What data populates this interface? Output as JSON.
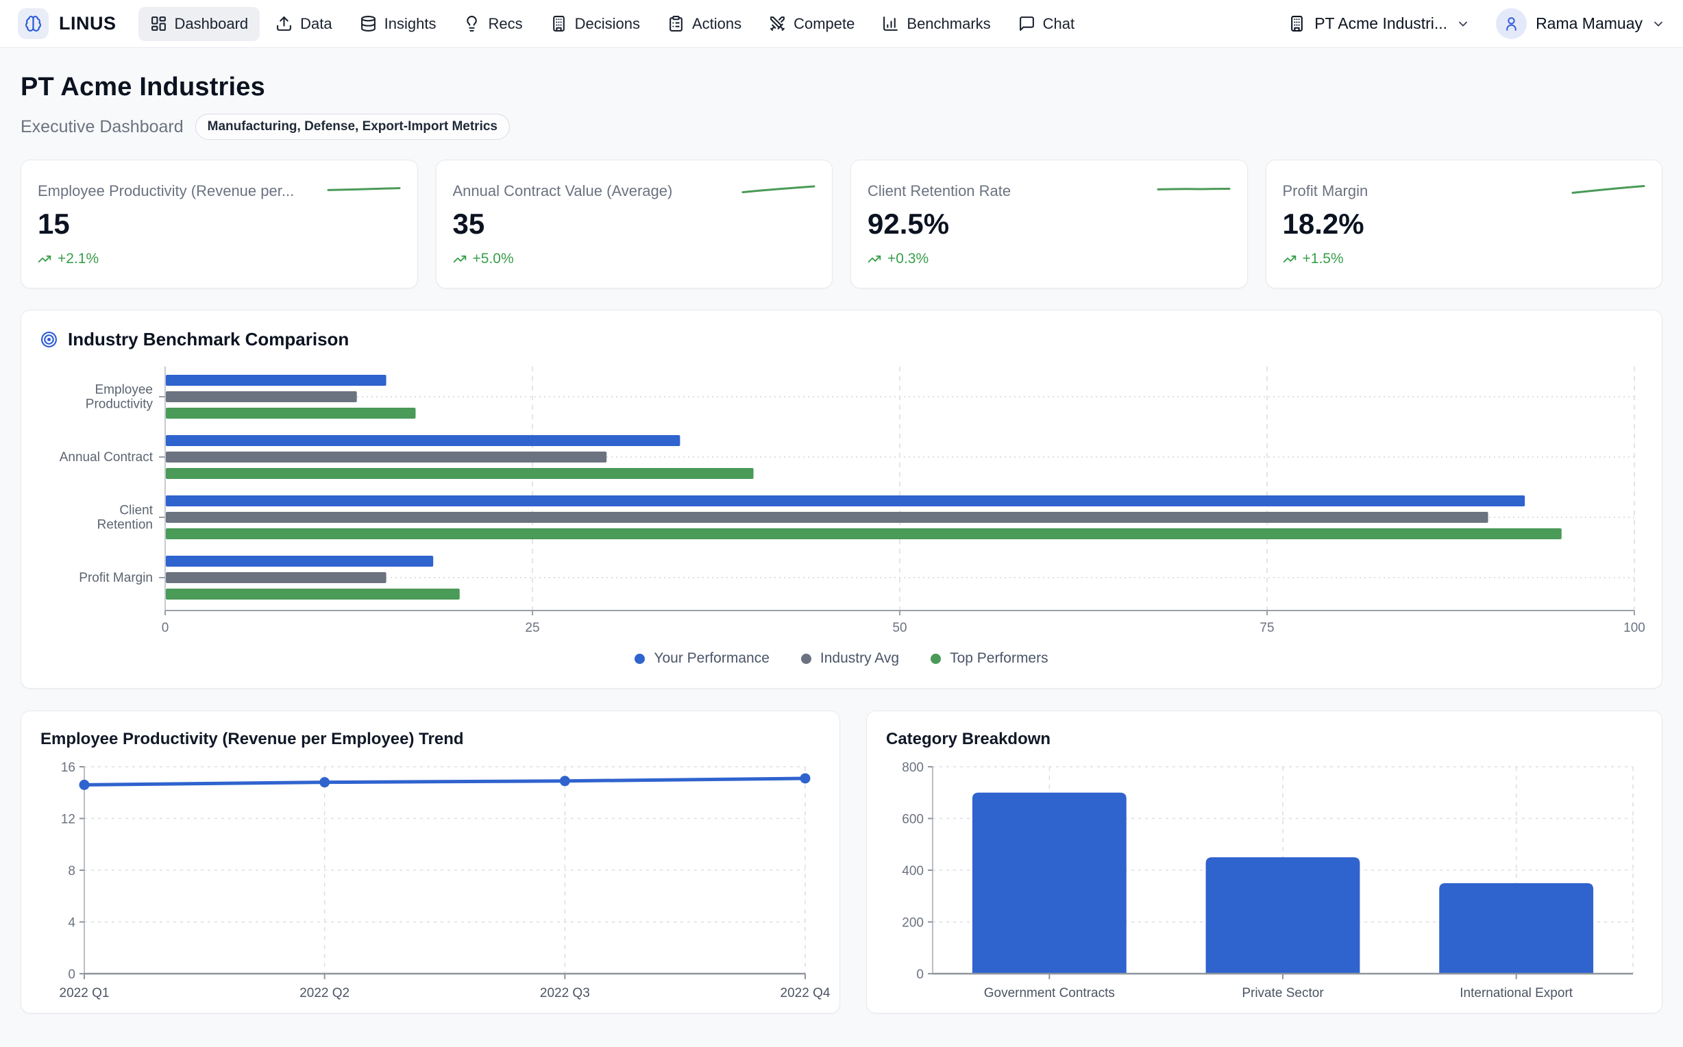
{
  "topbar": {
    "brand": "LINUS",
    "nav_items": [
      {
        "label": "Dashboard",
        "icon": "dashboard-icon",
        "active": true
      },
      {
        "label": "Data",
        "icon": "upload-icon",
        "active": false
      },
      {
        "label": "Insights",
        "icon": "database-icon",
        "active": false
      },
      {
        "label": "Recs",
        "icon": "lightbulb-icon",
        "active": false
      },
      {
        "label": "Decisions",
        "icon": "building-icon",
        "active": false
      },
      {
        "label": "Actions",
        "icon": "clipboard-icon",
        "active": false
      },
      {
        "label": "Compete",
        "icon": "swords-icon",
        "active": false
      },
      {
        "label": "Benchmarks",
        "icon": "bar-chart-icon",
        "active": false
      },
      {
        "label": "Chat",
        "icon": "chat-icon",
        "active": false
      }
    ],
    "company_selector": "PT Acme Industri...",
    "user_name": "Rama Mamuay"
  },
  "page": {
    "title": "PT Acme Industries",
    "subtitle": "Executive Dashboard",
    "badge": "Manufacturing, Defense, Export-Import Metrics"
  },
  "kpi_cards": [
    {
      "label": "Employee Productivity (Revenue per...",
      "value": "15",
      "change": "+2.1%",
      "sparkline": [
        0.58,
        0.55,
        0.52,
        0.49,
        0.45,
        0.42
      ]
    },
    {
      "label": "Annual Contract Value (Average)",
      "value": "35",
      "change": "+5.0%",
      "sparkline": [
        0.75,
        0.64,
        0.54,
        0.45,
        0.36,
        0.28
      ]
    },
    {
      "label": "Client Retention Rate",
      "value": "92.5%",
      "change": "+0.3%",
      "sparkline": [
        0.52,
        0.5,
        0.49,
        0.5,
        0.48,
        0.47
      ]
    },
    {
      "label": "Profit Margin",
      "value": "18.2%",
      "change": "+1.5%",
      "sparkline": [
        0.8,
        0.68,
        0.56,
        0.45,
        0.35,
        0.25
      ]
    }
  ],
  "benchmark_panel": {
    "title": "Industry Benchmark Comparison"
  },
  "trend_panel": {
    "title": "Employee Productivity (Revenue per Employee) Trend"
  },
  "category_panel": {
    "title": "Category Breakdown"
  },
  "chart_data": [
    {
      "type": "bar",
      "orientation": "horizontal",
      "title": "Industry Benchmark Comparison",
      "categories": [
        "Employee Productivity",
        "Annual Contract",
        "Client Retention",
        "Profit Margin"
      ],
      "series": [
        {
          "name": "Your Performance",
          "color": "#2f63ce",
          "values": [
            15,
            35,
            92.5,
            18.2
          ]
        },
        {
          "name": "Industry Avg",
          "color": "#6b7280",
          "values": [
            13,
            30,
            90,
            15
          ]
        },
        {
          "name": "Top Performers",
          "color": "#4a9a58",
          "values": [
            17,
            40,
            95,
            20
          ]
        }
      ],
      "xlim": [
        0,
        100
      ],
      "xticks": [
        0,
        25,
        50,
        75,
        100
      ],
      "grid": true,
      "legend_position": "bottom"
    },
    {
      "type": "line",
      "title": "Employee Productivity (Revenue per Employee) Trend",
      "x": [
        "2022 Q1",
        "2022 Q2",
        "2022 Q3",
        "2022 Q4"
      ],
      "values": [
        14.6,
        14.8,
        14.9,
        15.1
      ],
      "ylim": [
        0,
        16
      ],
      "yticks": [
        0,
        4,
        8,
        12,
        16
      ],
      "grid": true,
      "color": "#2f63ce"
    },
    {
      "type": "bar",
      "title": "Category Breakdown",
      "categories": [
        "Government Contracts",
        "Private Sector",
        "International Export"
      ],
      "values": [
        700,
        450,
        350
      ],
      "ylim": [
        0,
        800
      ],
      "yticks": [
        0,
        200,
        400,
        600,
        800
      ],
      "grid": true,
      "color": "#2f63ce"
    }
  ],
  "colors": {
    "accent_blue": "#2f63ce",
    "series_gray": "#6b7280",
    "series_green": "#4a9a58",
    "trend_green": "#389e4a",
    "brand_blue": "#2a5bd7"
  }
}
